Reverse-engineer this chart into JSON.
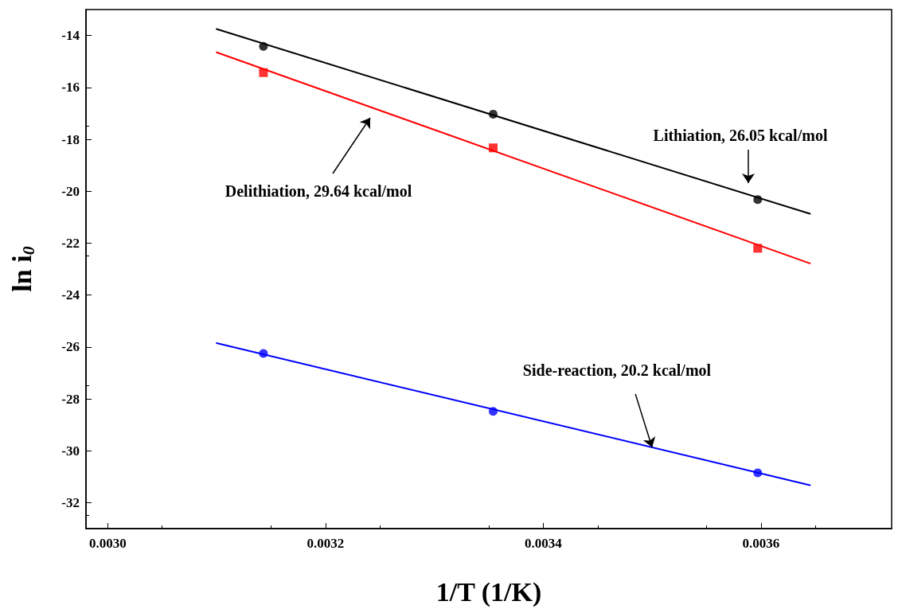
{
  "chart_data": {
    "type": "scatter",
    "xlabel": "1/T (1/K)",
    "ylabel": "ln i$_{0}$",
    "xlim": [
      0.00298,
      0.00372
    ],
    "ylim": [
      -33,
      -13
    ],
    "xticks": [
      {
        "value": 0.003,
        "label": "0.0030"
      },
      {
        "value": 0.0032,
        "label": "0.0032"
      },
      {
        "value": 0.0034,
        "label": "0.0034"
      },
      {
        "value": 0.0036,
        "label": "0.0036"
      }
    ],
    "yticks": [
      -32,
      -30,
      -28,
      -26,
      -24,
      -22,
      -20,
      -18,
      -16,
      -14
    ],
    "grid": false,
    "series": [
      {
        "marker": "circle",
        "color": "#000000",
        "x": [
          0.003143,
          0.003354,
          0.003597
        ],
        "values": [
          -14.42,
          -17.03,
          -20.32
        ]
      },
      {
        "marker": "square",
        "color": "#ff0000",
        "x": [
          0.003143,
          0.003354,
          0.003597
        ],
        "values": [
          -15.43,
          -18.33,
          -22.2
        ]
      },
      {
        "marker": "circle",
        "color": "#0000ff",
        "x": [
          0.003143,
          0.003354,
          0.003597
        ],
        "values": [
          -26.25,
          -28.48,
          -30.85
        ]
      },
      {
        "type": "line",
        "marker": "none",
        "line_style": "solid",
        "color": "#000000",
        "x": [
          0.0031,
          0.003645
        ],
        "values": [
          -13.75,
          -20.87
        ]
      },
      {
        "type": "line",
        "marker": "none",
        "line_style": "solid",
        "color": "#ff0000",
        "x": [
          0.0031,
          0.003645
        ],
        "values": [
          -14.65,
          -22.78
        ]
      },
      {
        "type": "line",
        "marker": "none",
        "line_style": "solid",
        "color": "#0000ff",
        "x": [
          0.0031,
          0.003645
        ],
        "values": [
          -25.85,
          -31.33
        ]
      }
    ],
    "annotations": [
      "Lithiation, 26.05 kcal/mol",
      "Delithiation, 29.64 kcal/mol",
      {
        "text": "Side-reaction, 20.2 kcal/mol",
        "x": 0.0035,
        "y": -29.87
      }
    ]
  }
}
